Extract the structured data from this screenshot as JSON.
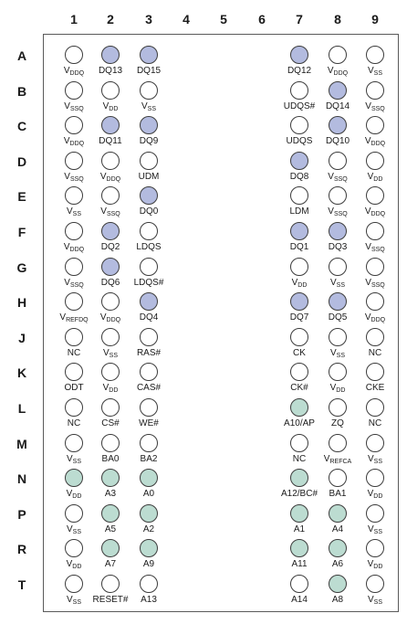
{
  "columns": [
    "1",
    "2",
    "3",
    "4",
    "5",
    "6",
    "7",
    "8",
    "9"
  ],
  "rows": [
    "A",
    "B",
    "C",
    "D",
    "E",
    "F",
    "G",
    "H",
    "J",
    "K",
    "L",
    "M",
    "N",
    "P",
    "R",
    "T"
  ],
  "colors": {
    "dq": "#b3bbdf",
    "addr": "#bcdcd1",
    "plain": "#ffffff"
  },
  "balls": [
    {
      "row": "A",
      "cells": [
        {
          "col": "1",
          "main": "V",
          "sub": "DDQ",
          "fill": "plain"
        },
        {
          "col": "2",
          "main": "DQ13",
          "sub": "",
          "fill": "dq"
        },
        {
          "col": "3",
          "main": "DQ15",
          "sub": "",
          "fill": "dq"
        },
        {
          "col": "7",
          "main": "DQ12",
          "sub": "",
          "fill": "dq"
        },
        {
          "col": "8",
          "main": "V",
          "sub": "DDQ",
          "fill": "plain"
        },
        {
          "col": "9",
          "main": "V",
          "sub": "SS",
          "fill": "plain"
        }
      ]
    },
    {
      "row": "B",
      "cells": [
        {
          "col": "1",
          "main": "V",
          "sub": "SSQ",
          "fill": "plain"
        },
        {
          "col": "2",
          "main": "V",
          "sub": "DD",
          "fill": "plain"
        },
        {
          "col": "3",
          "main": "V",
          "sub": "SS",
          "fill": "plain"
        },
        {
          "col": "7",
          "main": "UDQS#",
          "sub": "",
          "fill": "plain"
        },
        {
          "col": "8",
          "main": "DQ14",
          "sub": "",
          "fill": "dq"
        },
        {
          "col": "9",
          "main": "V",
          "sub": "SSQ",
          "fill": "plain"
        }
      ]
    },
    {
      "row": "C",
      "cells": [
        {
          "col": "1",
          "main": "V",
          "sub": "DDQ",
          "fill": "plain"
        },
        {
          "col": "2",
          "main": "DQ11",
          "sub": "",
          "fill": "dq"
        },
        {
          "col": "3",
          "main": "DQ9",
          "sub": "",
          "fill": "dq"
        },
        {
          "col": "7",
          "main": "UDQS",
          "sub": "",
          "fill": "plain"
        },
        {
          "col": "8",
          "main": "DQ10",
          "sub": "",
          "fill": "dq"
        },
        {
          "col": "9",
          "main": "V",
          "sub": "DDQ",
          "fill": "plain"
        }
      ]
    },
    {
      "row": "D",
      "cells": [
        {
          "col": "1",
          "main": "V",
          "sub": "SSQ",
          "fill": "plain"
        },
        {
          "col": "2",
          "main": "V",
          "sub": "DDQ",
          "fill": "plain"
        },
        {
          "col": "3",
          "main": "UDM",
          "sub": "",
          "fill": "plain"
        },
        {
          "col": "7",
          "main": "DQ8",
          "sub": "",
          "fill": "dq"
        },
        {
          "col": "8",
          "main": "V",
          "sub": "SSQ",
          "fill": "plain"
        },
        {
          "col": "9",
          "main": "V",
          "sub": "DD",
          "fill": "plain"
        }
      ]
    },
    {
      "row": "E",
      "cells": [
        {
          "col": "1",
          "main": "V",
          "sub": "SS",
          "fill": "plain"
        },
        {
          "col": "2",
          "main": "V",
          "sub": "SSQ",
          "fill": "plain"
        },
        {
          "col": "3",
          "main": "DQ0",
          "sub": "",
          "fill": "dq"
        },
        {
          "col": "7",
          "main": "LDM",
          "sub": "",
          "fill": "plain"
        },
        {
          "col": "8",
          "main": "V",
          "sub": "SSQ",
          "fill": "plain"
        },
        {
          "col": "9",
          "main": "V",
          "sub": "DDQ",
          "fill": "plain"
        }
      ]
    },
    {
      "row": "F",
      "cells": [
        {
          "col": "1",
          "main": "V",
          "sub": "DDQ",
          "fill": "plain"
        },
        {
          "col": "2",
          "main": "DQ2",
          "sub": "",
          "fill": "dq"
        },
        {
          "col": "3",
          "main": "LDQS",
          "sub": "",
          "fill": "plain"
        },
        {
          "col": "7",
          "main": "DQ1",
          "sub": "",
          "fill": "dq"
        },
        {
          "col": "8",
          "main": "DQ3",
          "sub": "",
          "fill": "dq"
        },
        {
          "col": "9",
          "main": "V",
          "sub": "SSQ",
          "fill": "plain"
        }
      ]
    },
    {
      "row": "G",
      "cells": [
        {
          "col": "1",
          "main": "V",
          "sub": "SSQ",
          "fill": "plain"
        },
        {
          "col": "2",
          "main": "DQ6",
          "sub": "",
          "fill": "dq"
        },
        {
          "col": "3",
          "main": "LDQS#",
          "sub": "",
          "fill": "plain"
        },
        {
          "col": "7",
          "main": "V",
          "sub": "DD",
          "fill": "plain"
        },
        {
          "col": "8",
          "main": "V",
          "sub": "SS",
          "fill": "plain"
        },
        {
          "col": "9",
          "main": "V",
          "sub": "SSQ",
          "fill": "plain"
        }
      ]
    },
    {
      "row": "H",
      "cells": [
        {
          "col": "1",
          "main": "V",
          "sub": "REFDQ",
          "fill": "plain"
        },
        {
          "col": "2",
          "main": "V",
          "sub": "DDQ",
          "fill": "plain"
        },
        {
          "col": "3",
          "main": "DQ4",
          "sub": "",
          "fill": "dq"
        },
        {
          "col": "7",
          "main": "DQ7",
          "sub": "",
          "fill": "dq"
        },
        {
          "col": "8",
          "main": "DQ5",
          "sub": "",
          "fill": "dq"
        },
        {
          "col": "9",
          "main": "V",
          "sub": "DDQ",
          "fill": "plain"
        }
      ]
    },
    {
      "row": "J",
      "cells": [
        {
          "col": "1",
          "main": "NC",
          "sub": "",
          "fill": "plain"
        },
        {
          "col": "2",
          "main": "V",
          "sub": "SS",
          "fill": "plain"
        },
        {
          "col": "3",
          "main": "RAS#",
          "sub": "",
          "fill": "plain"
        },
        {
          "col": "7",
          "main": "CK",
          "sub": "",
          "fill": "plain"
        },
        {
          "col": "8",
          "main": "V",
          "sub": "SS",
          "fill": "plain"
        },
        {
          "col": "9",
          "main": "NC",
          "sub": "",
          "fill": "plain"
        }
      ]
    },
    {
      "row": "K",
      "cells": [
        {
          "col": "1",
          "main": "ODT",
          "sub": "",
          "fill": "plain"
        },
        {
          "col": "2",
          "main": "V",
          "sub": "DD",
          "fill": "plain"
        },
        {
          "col": "3",
          "main": "CAS#",
          "sub": "",
          "fill": "plain"
        },
        {
          "col": "7",
          "main": "CK#",
          "sub": "",
          "fill": "plain"
        },
        {
          "col": "8",
          "main": "V",
          "sub": "DD",
          "fill": "plain"
        },
        {
          "col": "9",
          "main": "CKE",
          "sub": "",
          "fill": "plain"
        }
      ]
    },
    {
      "row": "L",
      "cells": [
        {
          "col": "1",
          "main": "NC",
          "sub": "",
          "fill": "plain"
        },
        {
          "col": "2",
          "main": "CS#",
          "sub": "",
          "fill": "plain"
        },
        {
          "col": "3",
          "main": "WE#",
          "sub": "",
          "fill": "plain"
        },
        {
          "col": "7",
          "main": "A10/AP",
          "sub": "",
          "fill": "addr"
        },
        {
          "col": "8",
          "main": "ZQ",
          "sub": "",
          "fill": "plain"
        },
        {
          "col": "9",
          "main": "NC",
          "sub": "",
          "fill": "plain"
        }
      ]
    },
    {
      "row": "M",
      "cells": [
        {
          "col": "1",
          "main": "V",
          "sub": "SS",
          "fill": "plain"
        },
        {
          "col": "2",
          "main": "BA0",
          "sub": "",
          "fill": "plain"
        },
        {
          "col": "3",
          "main": "BA2",
          "sub": "",
          "fill": "plain"
        },
        {
          "col": "7",
          "main": "NC",
          "sub": "",
          "fill": "plain"
        },
        {
          "col": "8",
          "main": "V",
          "sub": "REFCA",
          "fill": "plain"
        },
        {
          "col": "9",
          "main": "V",
          "sub": "SS",
          "fill": "plain"
        }
      ]
    },
    {
      "row": "N",
      "cells": [
        {
          "col": "1",
          "main": "V",
          "sub": "DD",
          "fill": "addr"
        },
        {
          "col": "2",
          "main": "A3",
          "sub": "",
          "fill": "addr"
        },
        {
          "col": "3",
          "main": "A0",
          "sub": "",
          "fill": "addr"
        },
        {
          "col": "7",
          "main": "A12/BC#",
          "sub": "",
          "fill": "addr"
        },
        {
          "col": "8",
          "main": "BA1",
          "sub": "",
          "fill": "plain"
        },
        {
          "col": "9",
          "main": "V",
          "sub": "DD",
          "fill": "plain"
        }
      ]
    },
    {
      "row": "P",
      "cells": [
        {
          "col": "1",
          "main": "V",
          "sub": "SS",
          "fill": "plain"
        },
        {
          "col": "2",
          "main": "A5",
          "sub": "",
          "fill": "addr"
        },
        {
          "col": "3",
          "main": "A2",
          "sub": "",
          "fill": "addr"
        },
        {
          "col": "7",
          "main": "A1",
          "sub": "",
          "fill": "addr"
        },
        {
          "col": "8",
          "main": "A4",
          "sub": "",
          "fill": "addr"
        },
        {
          "col": "9",
          "main": "V",
          "sub": "SS",
          "fill": "plain"
        }
      ]
    },
    {
      "row": "R",
      "cells": [
        {
          "col": "1",
          "main": "V",
          "sub": "DD",
          "fill": "plain"
        },
        {
          "col": "2",
          "main": "A7",
          "sub": "",
          "fill": "addr"
        },
        {
          "col": "3",
          "main": "A9",
          "sub": "",
          "fill": "addr"
        },
        {
          "col": "7",
          "main": "A11",
          "sub": "",
          "fill": "addr"
        },
        {
          "col": "8",
          "main": "A6",
          "sub": "",
          "fill": "addr"
        },
        {
          "col": "9",
          "main": "V",
          "sub": "DD",
          "fill": "plain"
        }
      ]
    },
    {
      "row": "T",
      "cells": [
        {
          "col": "1",
          "main": "V",
          "sub": "SS",
          "fill": "plain"
        },
        {
          "col": "2",
          "main": "RESET#",
          "sub": "",
          "fill": "plain"
        },
        {
          "col": "3",
          "main": "A13",
          "sub": "",
          "fill": "plain"
        },
        {
          "col": "7",
          "main": "A14",
          "sub": "",
          "fill": "plain"
        },
        {
          "col": "8",
          "main": "A8",
          "sub": "",
          "fill": "addr"
        },
        {
          "col": "9",
          "main": "V",
          "sub": "SS",
          "fill": "plain"
        }
      ]
    }
  ]
}
